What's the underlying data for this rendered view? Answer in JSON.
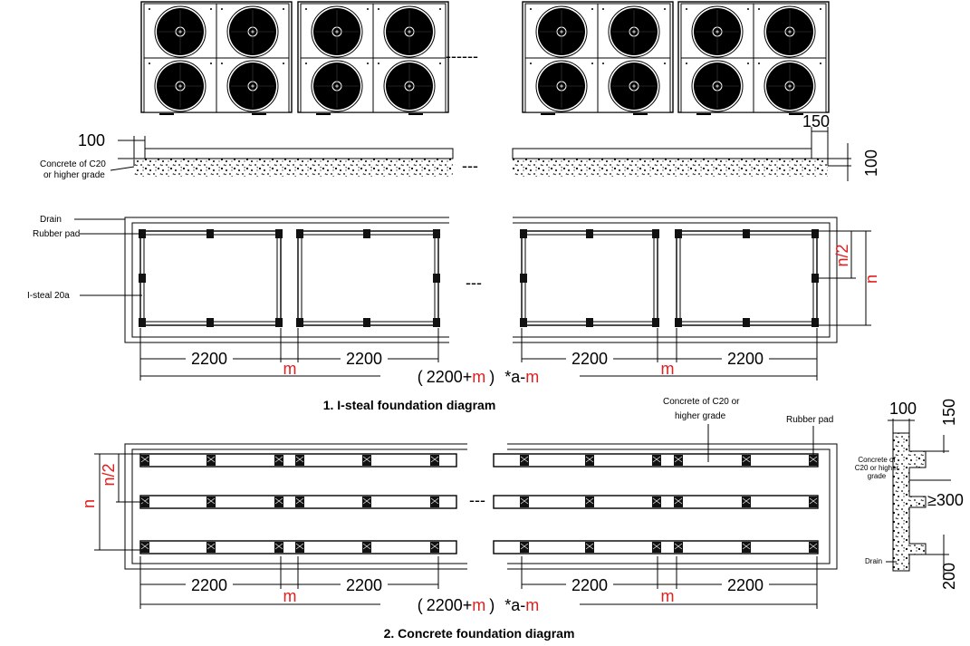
{
  "units_section": {
    "fan_units_count": 4,
    "break_mark": "------"
  },
  "section_view": {
    "dim_100_left": "100",
    "dim_150": "150",
    "dim_100_right": "100",
    "concrete_label_line1": "Concrete of C20",
    "concrete_label_line2": "or higher grade",
    "break_mark": "---"
  },
  "isteel": {
    "drain_label": "Drain",
    "rubber_pad_label": "Rubber pad",
    "isteel_label": "I-steal 20a",
    "n_half": "n/2",
    "n": "n",
    "break_mark": "---",
    "dim_2200": "2200",
    "dim_m": "m",
    "total_open": "(",
    "total_value": "2200",
    "total_plus": "+",
    "total_m": "m",
    "total_close": ")",
    "total_tail": " *a-",
    "total_m2": "m",
    "caption": "1. I-steal foundation diagram"
  },
  "concrete": {
    "concrete_label_line1": "Concrete of C20 or",
    "concrete_label_line2": "higher grade",
    "rubber_pad_label": "Rubber pad",
    "n_half": "n/2",
    "n": "n",
    "break_mark": "---",
    "dim_2200": "2200",
    "dim_m": "m",
    "total_open": "(",
    "total_value": "2200",
    "total_plus": "+",
    "total_m": "m",
    "total_close": ")",
    "total_tail": " *a-",
    "total_m2": "m",
    "caption": "2. Concrete foundation diagram"
  },
  "side_section": {
    "dim_100": "100",
    "dim_150": "150",
    "concrete_line1": "Concrete of",
    "concrete_line2": "C20 or higher",
    "concrete_line3": "grade",
    "dim_300": "≥300",
    "drain_label": "Drain",
    "dim_200": "200"
  }
}
